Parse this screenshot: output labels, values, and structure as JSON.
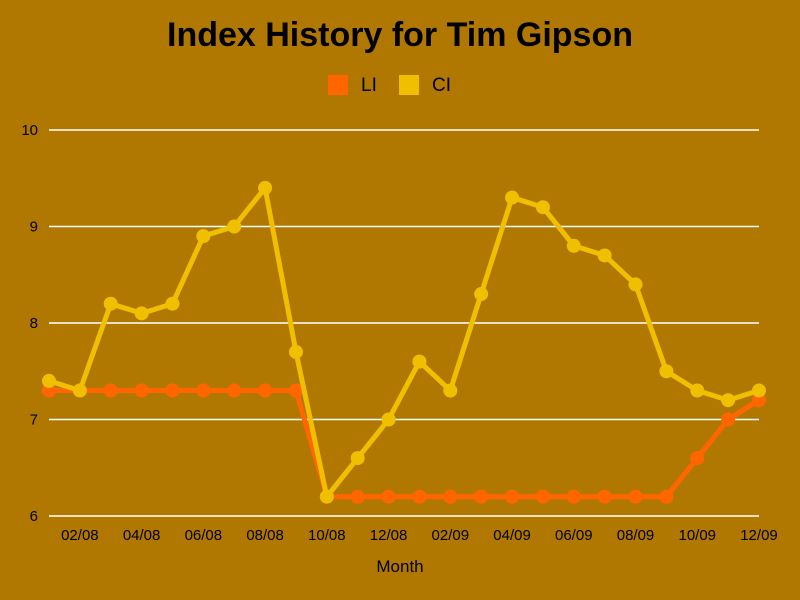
{
  "chart_data": {
    "type": "line",
    "title": "Index History for Tim Gipson",
    "xlabel": "Month",
    "ylabel": "",
    "ylim": [
      6,
      10
    ],
    "yticks": [
      "6",
      "7",
      "8",
      "9",
      "10"
    ],
    "grid": true,
    "legend_position": "top-center",
    "background": "#b07800",
    "x": [
      "01/08",
      "02/08",
      "03/08",
      "04/08",
      "05/08",
      "06/08",
      "07/08",
      "08/08",
      "09/08",
      "10/08",
      "11/08",
      "12/08",
      "01/09",
      "02/09",
      "03/09",
      "04/09",
      "05/09",
      "06/09",
      "07/09",
      "08/09",
      "09/09",
      "10/09",
      "11/09",
      "12/09"
    ],
    "xtick_labels": [
      "02/08",
      "04/08",
      "06/08",
      "08/08",
      "10/08",
      "12/08",
      "02/09",
      "04/09",
      "06/09",
      "08/09",
      "10/09",
      "12/09"
    ],
    "series": [
      {
        "name": "LI",
        "color": "#ff6600",
        "values": [
          7.3,
          7.3,
          7.3,
          7.3,
          7.3,
          7.3,
          7.3,
          7.3,
          7.3,
          6.2,
          6.2,
          6.2,
          6.2,
          6.2,
          6.2,
          6.2,
          6.2,
          6.2,
          6.2,
          6.2,
          6.2,
          6.6,
          7.0,
          7.2
        ]
      },
      {
        "name": "CI",
        "color": "#f0c000",
        "values": [
          7.4,
          7.3,
          8.2,
          8.1,
          8.2,
          8.9,
          9.0,
          9.4,
          7.7,
          6.2,
          6.6,
          7.0,
          7.6,
          7.3,
          8.3,
          9.3,
          9.2,
          8.8,
          8.7,
          8.4,
          7.5,
          7.3,
          7.2,
          7.3
        ]
      }
    ]
  }
}
